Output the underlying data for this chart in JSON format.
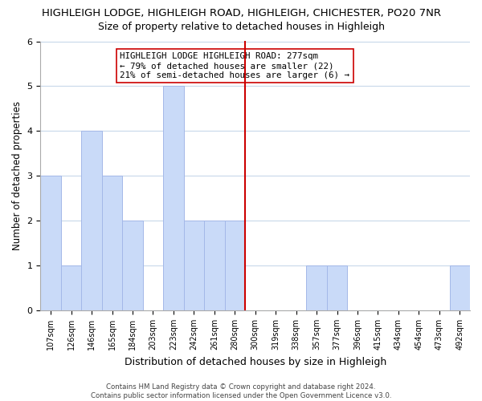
{
  "title": "HIGHLEIGH LODGE, HIGHLEIGH ROAD, HIGHLEIGH, CHICHESTER, PO20 7NR",
  "subtitle": "Size of property relative to detached houses in Highleigh",
  "xlabel": "Distribution of detached houses by size in Highleigh",
  "ylabel": "Number of detached properties",
  "bar_labels": [
    "107sqm",
    "126sqm",
    "146sqm",
    "165sqm",
    "184sqm",
    "203sqm",
    "223sqm",
    "242sqm",
    "261sqm",
    "280sqm",
    "300sqm",
    "319sqm",
    "338sqm",
    "357sqm",
    "377sqm",
    "396sqm",
    "415sqm",
    "434sqm",
    "454sqm",
    "473sqm",
    "492sqm"
  ],
  "bar_values": [
    3,
    1,
    4,
    3,
    2,
    0,
    5,
    2,
    2,
    2,
    0,
    0,
    0,
    1,
    1,
    0,
    0,
    0,
    0,
    0,
    1
  ],
  "bar_color": "#c9daf8",
  "bar_edge_color": "#a4b8e8",
  "vline_x": 9.5,
  "vline_color": "#cc0000",
  "ylim": [
    0,
    6
  ],
  "yticks": [
    0,
    1,
    2,
    3,
    4,
    5,
    6
  ],
  "annotation_title": "HIGHLEIGH LODGE HIGHLEIGH ROAD: 277sqm",
  "annotation_line2": "← 79% of detached houses are smaller (22)",
  "annotation_line3": "21% of semi-detached houses are larger (6) →",
  "footer1": "Contains HM Land Registry data © Crown copyright and database right 2024.",
  "footer2": "Contains public sector information licensed under the Open Government Licence v3.0.",
  "bg_color": "#ffffff",
  "grid_color": "#c8d8ea"
}
